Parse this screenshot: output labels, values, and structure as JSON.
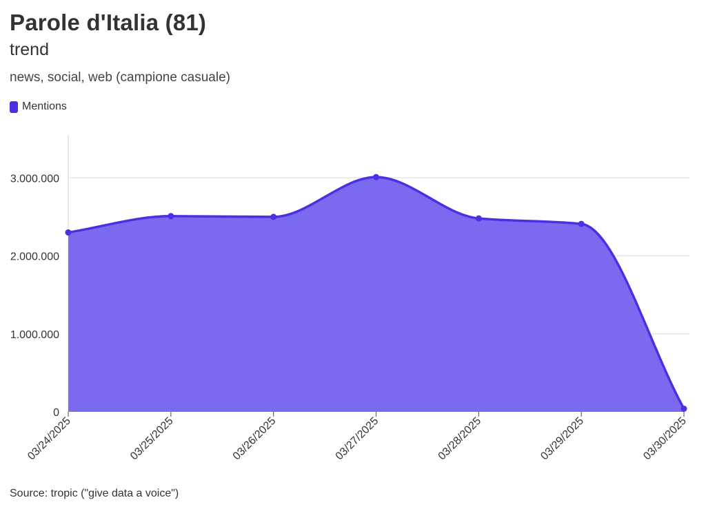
{
  "title": "Parole d'Italia (81)",
  "subtitle": "trend",
  "description": "news, social, web (campione casuale)",
  "legend": {
    "label": "Mentions",
    "color": "#4b2fe2"
  },
  "source": "Source: tropic (\"give data a voice\")",
  "colors": {
    "line": "#4b2fe2",
    "area": "#7a6aef",
    "grid": "#e6e6e6"
  },
  "chart_data": {
    "type": "area",
    "x": [
      "03/24/2025",
      "03/25/2025",
      "03/26/2025",
      "03/27/2025",
      "03/28/2025",
      "03/29/2025",
      "03/30/2025"
    ],
    "series": [
      {
        "name": "Mentions",
        "values": [
          2300000,
          2510000,
          2500000,
          3010000,
          2480000,
          2410000,
          40000
        ]
      }
    ],
    "y_ticks": [
      0,
      1000000,
      2000000,
      3000000
    ],
    "y_tick_labels": [
      "0",
      "1.000.000",
      "2.000.000",
      "3.000.000"
    ],
    "ylim": [
      0,
      3550000
    ],
    "grid": true,
    "smooth": true,
    "legend_position": "top-left"
  }
}
